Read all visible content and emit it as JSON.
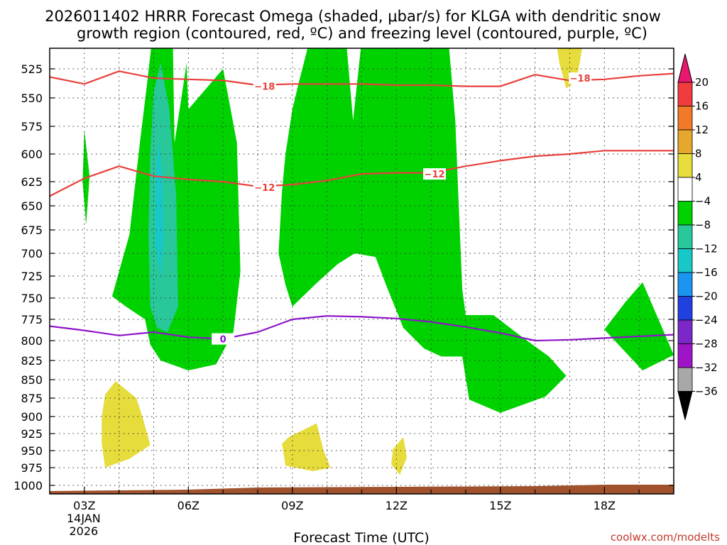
{
  "title_lines": [
    "2026011402 HRRR Forecast Omega (shaded, μbar/s) for KLGA with dendritic snow",
    "growth region (contoured, red, ºC) and freezing level (contoured, purple, ºC)"
  ],
  "credit": "coolwx.com/modelts",
  "chart_data": {
    "type": "time-height contour",
    "xlabel": "Forecast Time (UTC)",
    "ylabel": "",
    "x_range_hours": [
      2,
      20
    ],
    "y_range_hpa": [
      1010,
      500
    ],
    "x_ticks": [
      {
        "hour": 3,
        "label": "03Z",
        "sub": [
          "14JAN",
          "2026"
        ]
      },
      {
        "hour": 6,
        "label": "06Z",
        "sub": []
      },
      {
        "hour": 9,
        "label": "09Z",
        "sub": []
      },
      {
        "hour": 12,
        "label": "12Z",
        "sub": []
      },
      {
        "hour": 15,
        "label": "15Z",
        "sub": []
      },
      {
        "hour": 18,
        "label": "18Z",
        "sub": []
      }
    ],
    "y_ticks": [
      525,
      550,
      575,
      600,
      625,
      650,
      675,
      700,
      725,
      750,
      775,
      800,
      825,
      850,
      875,
      900,
      925,
      950,
      975,
      1000
    ],
    "grid": true,
    "colorbar": {
      "labels": [
        "20",
        "16",
        "12",
        "8",
        "4",
        "−4",
        "−8",
        "−12",
        "−16",
        "−20",
        "−24",
        "−28",
        "−32",
        "−36"
      ],
      "colors": [
        "#e8186e",
        "#f03c3c",
        "#f07a28",
        "#e6a82c",
        "#e6dc3c",
        "#ffffff",
        "#00d200",
        "#28c89a",
        "#18c8c8",
        "#1a96f0",
        "#2040e0",
        "#7a28c8",
        "#a014c8",
        "#a8a8a8"
      ]
    },
    "shading": [
      {
        "name": "omega-minus4-west",
        "value_range": "-4 to -8",
        "color": "#00d200",
        "outline": [
          [
            4.95,
            500
          ],
          [
            5.55,
            500
          ],
          [
            5.6,
            590
          ],
          [
            5.95,
            520
          ],
          [
            6.0,
            560
          ],
          [
            7.0,
            525
          ],
          [
            7.4,
            590
          ],
          [
            7.5,
            720
          ],
          [
            7.3,
            790
          ],
          [
            6.8,
            830
          ],
          [
            6.0,
            838
          ],
          [
            5.2,
            825
          ],
          [
            4.9,
            805
          ],
          [
            4.75,
            775
          ],
          [
            4.2,
            760
          ],
          [
            3.8,
            748
          ],
          [
            4.3,
            680
          ],
          [
            4.6,
            590
          ],
          [
            4.8,
            540
          ]
        ]
      },
      {
        "name": "omega-minus8-west",
        "value_range": "-8 to -12",
        "color": "#28c89a",
        "outline": [
          [
            5.0,
            545
          ],
          [
            5.2,
            520
          ],
          [
            5.45,
            560
          ],
          [
            5.65,
            640
          ],
          [
            5.7,
            760
          ],
          [
            5.4,
            790
          ],
          [
            5.1,
            785
          ],
          [
            4.9,
            760
          ],
          [
            4.85,
            680
          ],
          [
            4.9,
            600
          ]
        ]
      },
      {
        "name": "omega-minus12-west",
        "value_range": "-12 to -16",
        "color": "#18c8c8",
        "outline": [
          [
            5.15,
            590
          ],
          [
            5.25,
            620
          ],
          [
            5.3,
            680
          ],
          [
            5.2,
            728
          ],
          [
            5.05,
            690
          ],
          [
            5.05,
            620
          ]
        ]
      },
      {
        "name": "omega-minus4-small",
        "value_range": "-4 to -8",
        "color": "#00d200",
        "outline": [
          [
            3.0,
            578
          ],
          [
            3.15,
            620
          ],
          [
            3.05,
            670
          ],
          [
            2.95,
            625
          ]
        ]
      },
      {
        "name": "omega-minus4-center",
        "value_range": "-4 to -8",
        "color": "#00d200",
        "outline": [
          [
            9.5,
            500
          ],
          [
            10.55,
            500
          ],
          [
            10.75,
            570
          ],
          [
            11.0,
            500
          ],
          [
            13.5,
            500
          ],
          [
            13.7,
            570
          ],
          [
            13.8,
            650
          ],
          [
            13.9,
            740
          ],
          [
            14.0,
            770
          ],
          [
            14.8,
            770
          ],
          [
            15.6,
            795
          ],
          [
            16.4,
            820
          ],
          [
            16.9,
            845
          ],
          [
            16.3,
            873
          ],
          [
            15.0,
            895
          ],
          [
            14.1,
            877
          ],
          [
            13.9,
            820
          ],
          [
            13.3,
            820
          ],
          [
            12.8,
            810
          ],
          [
            12.2,
            785
          ],
          [
            11.7,
            735
          ],
          [
            11.4,
            704
          ],
          [
            10.8,
            700
          ],
          [
            10.3,
            712
          ],
          [
            9.7,
            733
          ],
          [
            9.0,
            760
          ],
          [
            8.8,
            735
          ],
          [
            8.6,
            700
          ],
          [
            8.7,
            635
          ],
          [
            8.8,
            600
          ],
          [
            9.0,
            560
          ],
          [
            9.2,
            535
          ]
        ]
      },
      {
        "name": "omega-minus4-east",
        "value_range": "-4 to -8",
        "color": "#00d200",
        "outline": [
          [
            19.1,
            732
          ],
          [
            20.0,
            818
          ],
          [
            19.1,
            838
          ],
          [
            18.0,
            787
          ],
          [
            18.6,
            755
          ]
        ]
      },
      {
        "name": "omega-plus4-upper",
        "value_range": "4 to 8",
        "color": "#e6dc3c",
        "outline": [
          [
            16.6,
            500
          ],
          [
            17.4,
            500
          ],
          [
            17.2,
            535
          ],
          [
            16.9,
            542
          ],
          [
            16.7,
            520
          ]
        ]
      },
      {
        "name": "omega-plus4-lower-west",
        "value_range": "4 to 8",
        "color": "#e6dc3c",
        "outline": [
          [
            3.9,
            852
          ],
          [
            4.5,
            875
          ],
          [
            4.7,
            905
          ],
          [
            4.9,
            942
          ],
          [
            4.3,
            962
          ],
          [
            3.6,
            975
          ],
          [
            3.5,
            940
          ],
          [
            3.5,
            900
          ],
          [
            3.6,
            870
          ]
        ]
      },
      {
        "name": "omega-plus4-lower-mid",
        "value_range": "4 to 8",
        "color": "#e6dc3c",
        "outline": [
          [
            8.9,
            930
          ],
          [
            9.7,
            910
          ],
          [
            9.9,
            950
          ],
          [
            10.1,
            975
          ],
          [
            9.6,
            980
          ],
          [
            8.8,
            972
          ],
          [
            8.7,
            940
          ]
        ]
      },
      {
        "name": "omega-plus4-lower-east",
        "value_range": "4 to 8",
        "color": "#e6dc3c",
        "outline": [
          [
            11.9,
            948
          ],
          [
            12.2,
            930
          ],
          [
            12.3,
            960
          ],
          [
            12.1,
            985
          ],
          [
            11.85,
            970
          ]
        ]
      }
    ],
    "contours": [
      {
        "name": "dgz-minus18",
        "level": "-18",
        "color": "#e8403c",
        "points": [
          [
            2.0,
            532
          ],
          [
            3.0,
            538
          ],
          [
            4.0,
            527
          ],
          [
            5.0,
            533
          ],
          [
            6.0,
            534
          ],
          [
            7.0,
            535
          ],
          [
            8.0,
            539
          ],
          [
            9.0,
            538
          ],
          [
            10.0,
            538
          ],
          [
            11.0,
            538
          ],
          [
            12.0,
            539
          ],
          [
            13.0,
            539
          ],
          [
            14.0,
            540
          ],
          [
            15.0,
            540
          ],
          [
            16.0,
            530
          ],
          [
            17.0,
            535
          ],
          [
            18.0,
            534
          ],
          [
            19.0,
            531
          ],
          [
            20.0,
            529
          ]
        ],
        "label_at": [
          [
            8.2,
            540
          ],
          [
            17.3,
            533
          ]
        ],
        "label": "−18"
      },
      {
        "name": "dgz-minus12",
        "level": "-12",
        "color": "#e8403c",
        "points": [
          [
            2.0,
            640
          ],
          [
            3.0,
            622
          ],
          [
            4.0,
            611
          ],
          [
            5.0,
            620
          ],
          [
            6.0,
            623
          ],
          [
            7.0,
            625
          ],
          [
            8.0,
            630
          ],
          [
            9.0,
            628
          ],
          [
            10.0,
            624
          ],
          [
            11.0,
            618
          ],
          [
            12.0,
            617
          ],
          [
            13.0,
            617
          ],
          [
            14.0,
            611
          ],
          [
            15.0,
            606
          ],
          [
            16.0,
            602
          ],
          [
            17.0,
            600
          ],
          [
            18.0,
            597
          ],
          [
            19.0,
            597
          ],
          [
            20.0,
            597
          ]
        ],
        "label_at": [
          [
            8.2,
            631
          ],
          [
            13.1,
            618
          ]
        ],
        "label": "−12"
      },
      {
        "name": "freezing-level-0",
        "level": "0",
        "color": "#8c14c8",
        "points": [
          [
            2.0,
            783
          ],
          [
            3.0,
            788
          ],
          [
            4.0,
            794
          ],
          [
            5.0,
            790
          ],
          [
            6.0,
            796
          ],
          [
            7.0,
            798
          ],
          [
            8.0,
            790
          ],
          [
            9.0,
            775
          ],
          [
            10.0,
            771
          ],
          [
            11.0,
            772
          ],
          [
            12.0,
            774
          ],
          [
            13.0,
            778
          ],
          [
            14.0,
            784
          ],
          [
            15.0,
            791
          ],
          [
            16.0,
            800
          ],
          [
            17.0,
            799
          ],
          [
            18.0,
            797
          ],
          [
            19.0,
            795
          ],
          [
            20.0,
            793
          ]
        ],
        "label_at": [
          [
            7.0,
            798
          ]
        ],
        "label": "0"
      }
    ],
    "terrain": {
      "name": "surface",
      "color": "#a0522d",
      "top": [
        [
          2.0,
          1008
        ],
        [
          6.0,
          1006
        ],
        [
          8.0,
          1003
        ],
        [
          12.0,
          1002
        ],
        [
          16.0,
          1001
        ],
        [
          18.0,
          999
        ],
        [
          20.0,
          999
        ]
      ]
    }
  }
}
